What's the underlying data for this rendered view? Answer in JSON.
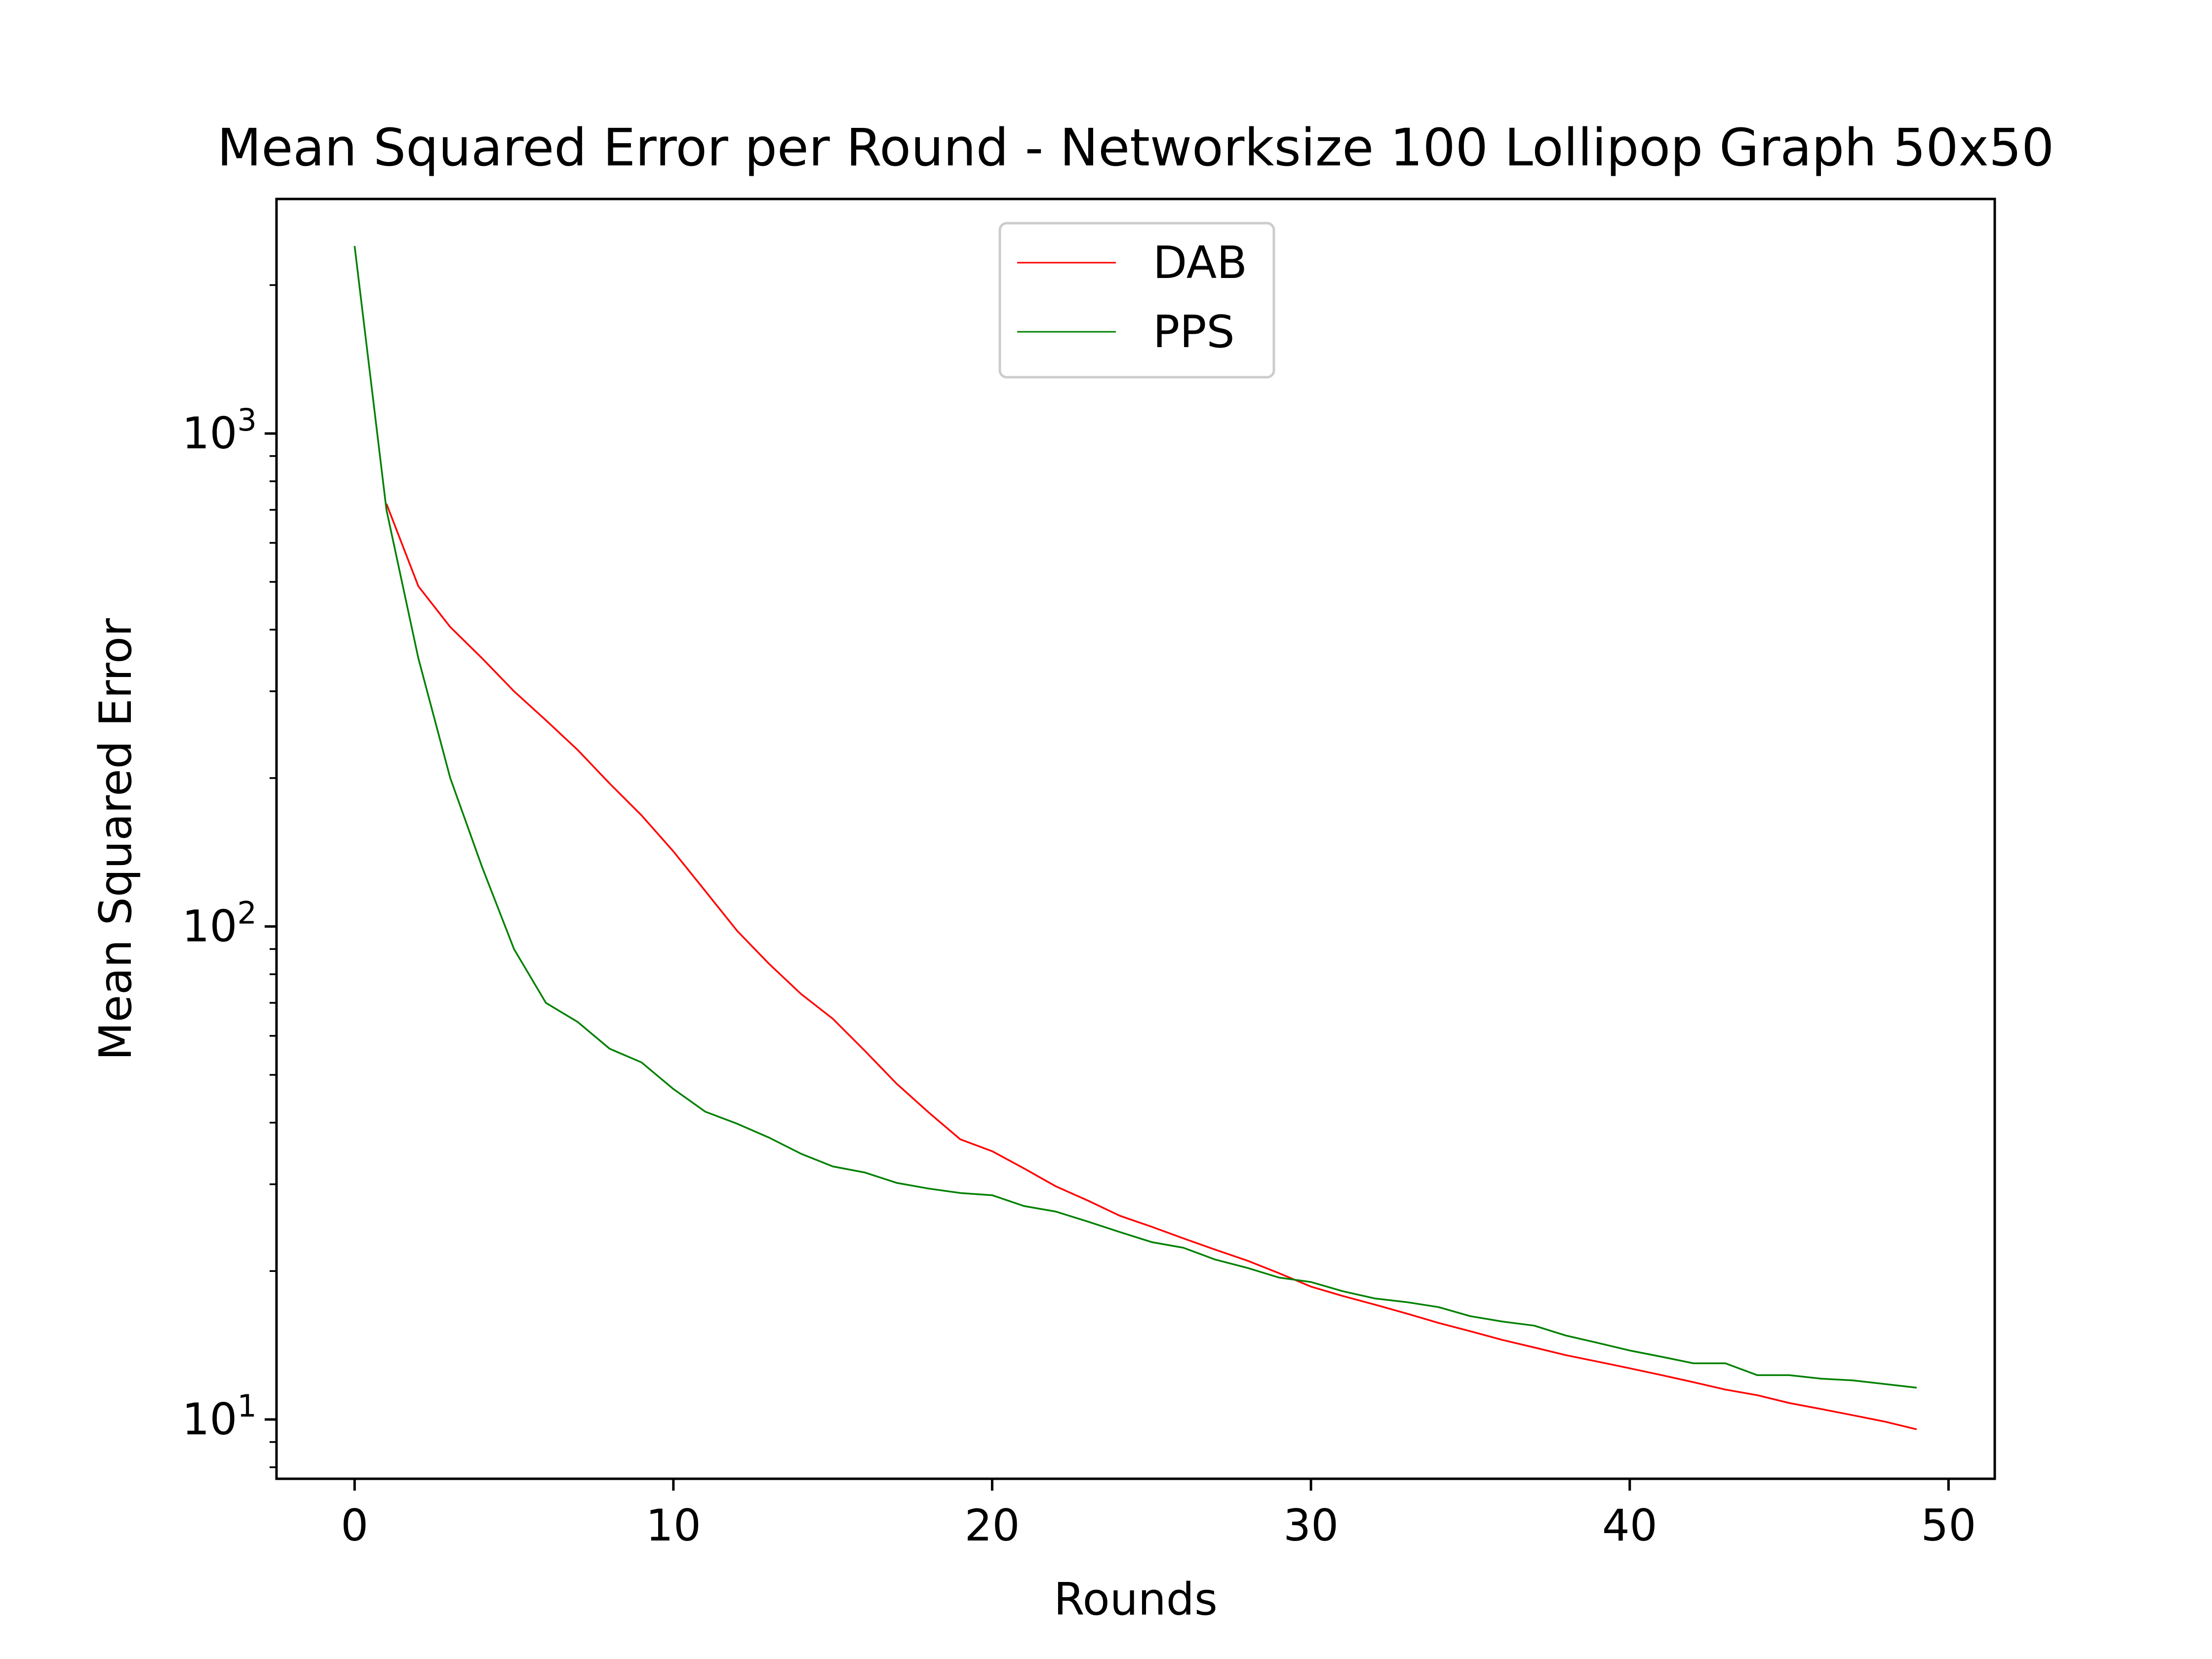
{
  "chart_data": {
    "type": "line",
    "title": "Mean Squared Error per Round - Networksize 100 Lollipop Graph 50x50",
    "xlabel": "Rounds",
    "ylabel": "Mean Squared Error",
    "xscale": "linear",
    "yscale": "log",
    "xlim": [
      -2.45,
      51.45
    ],
    "ylim": [
      7.58,
      2990
    ],
    "xticks": [
      0,
      10,
      20,
      30,
      40,
      50
    ],
    "xtick_labels": [
      "0",
      "10",
      "20",
      "30",
      "40",
      "50"
    ],
    "yticks": [
      10,
      100,
      1000
    ],
    "ytick_labels": [
      {
        "base": "10",
        "exp": "1"
      },
      {
        "base": "10",
        "exp": "2"
      },
      {
        "base": "10",
        "exp": "3"
      }
    ],
    "grid": false,
    "legend_position": "upper center",
    "series": [
      {
        "name": "DAB",
        "color": "#ff0000",
        "x": [
          1,
          2,
          3,
          4,
          5,
          6,
          7,
          8,
          9,
          10,
          11,
          12,
          13,
          14,
          15,
          16,
          17,
          18,
          19,
          20,
          21,
          22,
          23,
          24,
          25,
          26,
          27,
          28,
          29,
          30,
          31,
          32,
          33,
          34,
          35,
          36,
          37,
          38,
          39,
          40,
          41,
          42,
          43,
          44,
          45,
          46,
          47,
          48,
          49
        ],
        "y": [
          720,
          490,
          405,
          350,
          300,
          262,
          228,
          195,
          168,
          142,
          118,
          98,
          84,
          73,
          65,
          56,
          48,
          42,
          37,
          35,
          32.3,
          29.7,
          27.8,
          25.9,
          24.6,
          23.3,
          22.1,
          21,
          19.8,
          18.6,
          17.8,
          17.1,
          16.4,
          15.7,
          15.1,
          14.5,
          14,
          13.5,
          13.1,
          12.7,
          12.3,
          11.9,
          11.5,
          11.2,
          10.8,
          10.5,
          10.2,
          9.9,
          9.55
        ]
      },
      {
        "name": "PPS",
        "color": "#008000",
        "x": [
          0,
          1,
          2,
          3,
          4,
          5,
          6,
          7,
          8,
          9,
          10,
          11,
          12,
          13,
          14,
          15,
          16,
          17,
          18,
          19,
          20,
          21,
          22,
          23,
          24,
          25,
          26,
          27,
          28,
          29,
          30,
          31,
          32,
          33,
          34,
          35,
          36,
          37,
          38,
          39,
          40,
          41,
          42,
          43,
          44,
          45,
          46,
          47,
          48,
          49
        ],
        "y": [
          2400,
          700,
          350,
          200,
          132,
          90,
          70,
          64,
          56.5,
          53,
          46.8,
          42.1,
          39.8,
          37.3,
          34.6,
          32.6,
          31.7,
          30.2,
          29.4,
          28.8,
          28.5,
          27.1,
          26.4,
          25.2,
          24,
          22.9,
          22.3,
          21.1,
          20.3,
          19.4,
          19,
          18.2,
          17.6,
          17.3,
          16.9,
          16.2,
          15.8,
          15.5,
          14.8,
          14.3,
          13.8,
          13.4,
          13,
          13,
          12.3,
          12.3,
          12.1,
          12,
          11.8,
          11.6
        ]
      }
    ]
  }
}
